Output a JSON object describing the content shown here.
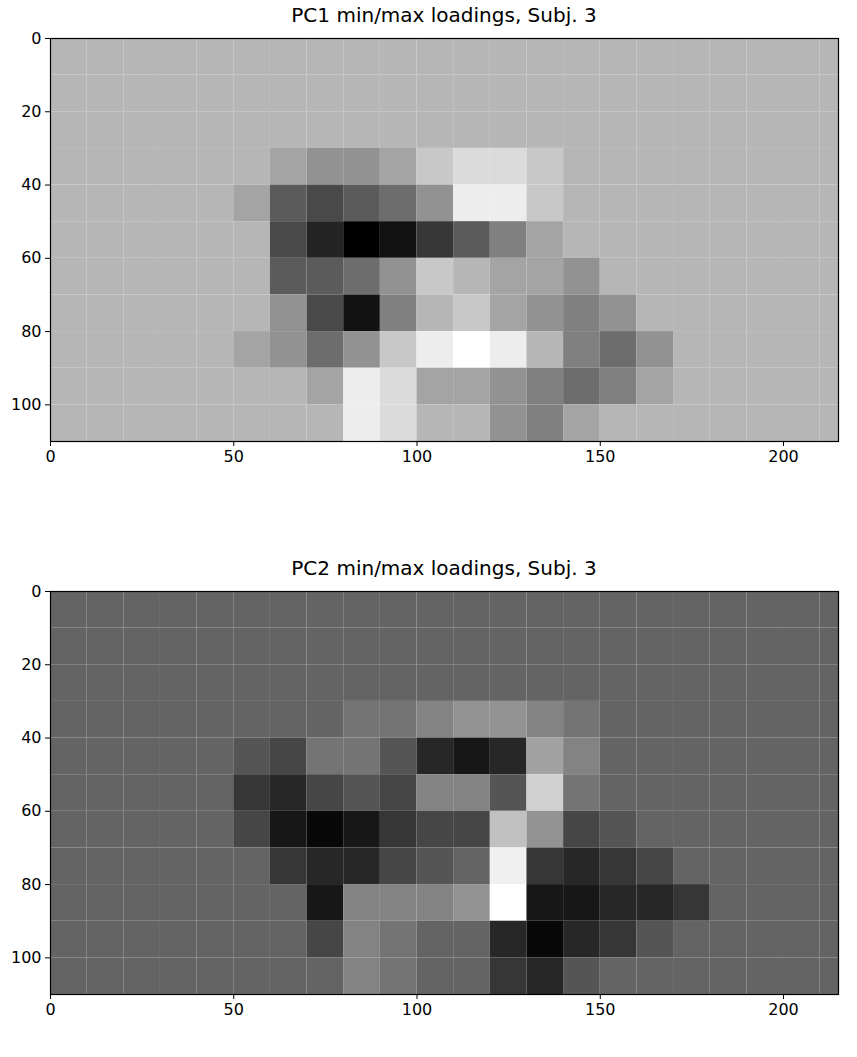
{
  "chart_data": [
    {
      "type": "heatmap",
      "title": "PC1 min/max loadings, Subj. 3",
      "xlim": [
        0,
        215
      ],
      "ylim": [
        0,
        110
      ],
      "xticks": [
        0,
        50,
        100,
        150,
        200
      ],
      "yticks": [
        0,
        20,
        40,
        60,
        80,
        100
      ],
      "value_range": [
        -1,
        0.4
      ],
      "x_edges": [
        0,
        10,
        20,
        30,
        40,
        50,
        60,
        70,
        80,
        90,
        100,
        110,
        120,
        130,
        140,
        150,
        160,
        170,
        180,
        190,
        200,
        210,
        220
      ],
      "y_edges": [
        0,
        10,
        20,
        30,
        40,
        50,
        60,
        70,
        80,
        90,
        100,
        110
      ],
      "cells": [
        [
          0,
          0,
          0,
          0,
          0,
          0,
          0,
          0,
          0,
          0,
          0,
          0,
          0,
          0,
          0,
          0,
          0,
          0,
          0,
          0,
          0,
          0
        ],
        [
          0,
          0,
          0,
          0,
          0,
          0,
          0,
          0,
          0,
          0,
          0,
          0,
          0,
          0,
          0,
          0,
          0,
          0,
          0,
          0,
          0,
          0
        ],
        [
          0,
          0,
          0,
          0,
          0,
          0,
          0,
          0,
          0,
          0,
          0,
          0,
          0,
          0,
          0,
          0,
          0,
          0,
          0,
          0,
          0,
          0
        ],
        [
          0,
          0,
          0,
          0,
          0,
          0,
          -0.1,
          -0.2,
          -0.2,
          -0.1,
          0.1,
          0.2,
          0.2,
          0.1,
          0,
          0,
          0,
          0,
          0,
          0,
          0,
          0
        ],
        [
          0,
          0,
          0,
          0,
          0,
          -0.1,
          -0.5,
          -0.6,
          -0.5,
          -0.4,
          -0.2,
          0.3,
          0.3,
          0.1,
          0,
          0,
          0,
          0,
          0,
          0,
          0,
          0
        ],
        [
          0,
          0,
          0,
          0,
          0,
          0,
          -0.6,
          -0.8,
          -1,
          -0.9,
          -0.7,
          -0.5,
          -0.3,
          -0.1,
          0,
          0,
          0,
          0,
          0,
          0,
          0,
          0
        ],
        [
          0,
          0,
          0,
          0,
          0,
          0,
          -0.5,
          -0.5,
          -0.4,
          -0.2,
          0.1,
          0,
          -0.1,
          -0.1,
          -0.2,
          0,
          0,
          0,
          0,
          0,
          0,
          0
        ],
        [
          0,
          0,
          0,
          0,
          0,
          0,
          -0.2,
          -0.6,
          -0.9,
          -0.3,
          0,
          0.1,
          -0.1,
          -0.2,
          -0.3,
          -0.2,
          0,
          0,
          0,
          0,
          0,
          0
        ],
        [
          0,
          0,
          0,
          0,
          0,
          -0.1,
          -0.2,
          -0.4,
          -0.2,
          0.1,
          0.3,
          0.4,
          0.3,
          0,
          -0.3,
          -0.4,
          -0.2,
          0,
          0,
          0,
          0,
          0
        ],
        [
          0,
          0,
          0,
          0,
          0,
          0,
          0,
          -0.1,
          0.3,
          0.2,
          -0.1,
          -0.1,
          -0.2,
          -0.3,
          -0.4,
          -0.3,
          -0.1,
          0,
          0,
          0,
          0,
          0
        ],
        [
          0,
          0,
          0,
          0,
          0,
          0,
          0,
          0,
          0.3,
          0.2,
          0,
          0,
          -0.2,
          -0.3,
          -0.1,
          0,
          0,
          0,
          0,
          0,
          0,
          0
        ]
      ]
    },
    {
      "type": "heatmap",
      "title": "PC2 min/max loadings, Subj. 3",
      "xlim": [
        0,
        215
      ],
      "ylim": [
        0,
        110
      ],
      "xticks": [
        0,
        50,
        100,
        150,
        200
      ],
      "yticks": [
        0,
        20,
        40,
        60,
        80,
        100
      ],
      "value_range": [
        -0.65,
        1
      ],
      "x_edges": [
        0,
        10,
        20,
        30,
        40,
        50,
        60,
        70,
        80,
        90,
        100,
        110,
        120,
        130,
        140,
        150,
        160,
        170,
        180,
        190,
        200,
        210,
        220
      ],
      "y_edges": [
        0,
        10,
        20,
        30,
        40,
        50,
        60,
        70,
        80,
        90,
        100,
        110
      ],
      "cells": [
        [
          0,
          0,
          0,
          0,
          0,
          0,
          0,
          0,
          0,
          0,
          0,
          0,
          0,
          0,
          0,
          0,
          0,
          0,
          0,
          0,
          0,
          0
        ],
        [
          0,
          0,
          0,
          0,
          0,
          0,
          0,
          0,
          0,
          0,
          0,
          0,
          0,
          0,
          0,
          0,
          0,
          0,
          0,
          0,
          0,
          0
        ],
        [
          0,
          0,
          0,
          0,
          0,
          0,
          0,
          0,
          0,
          0,
          0,
          0,
          0,
          0,
          0,
          0,
          0,
          0,
          0,
          0,
          0,
          0
        ],
        [
          0,
          0,
          0,
          0,
          0,
          0,
          0,
          0,
          0.1,
          0.1,
          0.2,
          0.3,
          0.3,
          0.2,
          0.1,
          0,
          0,
          0,
          0,
          0,
          0,
          0
        ],
        [
          0,
          0,
          0,
          0,
          0,
          -0.1,
          -0.2,
          0.1,
          0.1,
          -0.1,
          -0.4,
          -0.5,
          -0.4,
          0.4,
          0.2,
          0,
          0,
          0,
          0,
          0,
          0,
          0
        ],
        [
          0,
          0,
          0,
          0,
          0,
          -0.3,
          -0.4,
          -0.2,
          -0.1,
          -0.2,
          0.2,
          0.2,
          -0.1,
          0.7,
          0.1,
          0,
          0,
          0,
          0,
          0,
          0,
          0
        ],
        [
          0,
          0,
          0,
          0,
          0,
          -0.2,
          -0.5,
          -0.6,
          -0.5,
          -0.3,
          -0.2,
          -0.2,
          0.6,
          0.3,
          -0.2,
          -0.1,
          0,
          0,
          0,
          0,
          0,
          0
        ],
        [
          0,
          0,
          0,
          0,
          0,
          0,
          -0.3,
          -0.4,
          -0.4,
          -0.2,
          -0.1,
          0,
          0.9,
          -0.3,
          -0.4,
          -0.3,
          -0.2,
          0,
          0,
          0,
          0,
          0
        ],
        [
          0,
          0,
          0,
          0,
          0,
          0,
          0,
          -0.5,
          0.2,
          0.2,
          0.2,
          0.3,
          1,
          -0.5,
          -0.5,
          -0.4,
          -0.4,
          -0.3,
          0,
          0,
          0,
          0
        ],
        [
          0,
          0,
          0,
          0,
          0,
          0,
          0,
          -0.2,
          0.2,
          0.1,
          0,
          0,
          -0.4,
          -0.6,
          -0.4,
          -0.3,
          -0.1,
          0,
          0,
          0,
          0,
          0
        ],
        [
          0,
          0,
          0,
          0,
          0,
          0,
          0,
          0,
          0.2,
          0.1,
          0,
          0,
          -0.3,
          -0.4,
          -0.1,
          0,
          0,
          0,
          0,
          0,
          0,
          0
        ]
      ]
    }
  ]
}
